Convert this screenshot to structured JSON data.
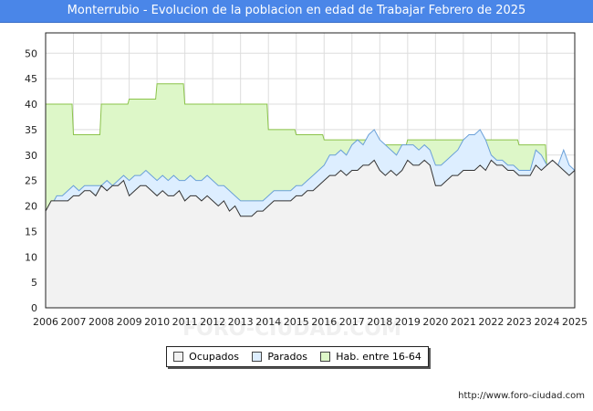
{
  "title": "Monterrubio - Evolucion de la poblacion en edad de Trabajar Febrero de 2025",
  "footer": "http://www.foro-ciudad.com",
  "watermark": "FORO-CIUDAD.COM",
  "colors": {
    "title_bg": "#4a86e8",
    "hab_fill": "#ddf7c8",
    "hab_line": "#8bc34a",
    "parados_fill": "#ddeeff",
    "parados_line": "#6aa0d8",
    "ocupados_fill": "#f2f2f2",
    "ocupados_line": "#333333",
    "grid": "#dddddd"
  },
  "chart_data": {
    "type": "area",
    "title": "Monterrubio - Evolucion de la poblacion en edad de Trabajar Febrero de 2025",
    "xlim": [
      2006,
      2025
    ],
    "ylim": [
      0,
      54
    ],
    "x_ticks": [
      "2006",
      "2007",
      "2008",
      "2009",
      "2010",
      "2011",
      "2012",
      "2013",
      "2014",
      "2015",
      "2016",
      "2017",
      "2018",
      "2019",
      "2020",
      "2021",
      "2022",
      "2023",
      "2024",
      "2025"
    ],
    "y_ticks": [
      0,
      5,
      10,
      15,
      20,
      25,
      30,
      35,
      40,
      45,
      50
    ],
    "grid": true,
    "legend_position": "bottom",
    "series": [
      {
        "name": "Hab. entre 16-64",
        "color": "#ddf7c8",
        "points": [
          [
            2006.0,
            40
          ],
          [
            2006.95,
            40
          ],
          [
            2007.0,
            34
          ],
          [
            2007.95,
            34
          ],
          [
            2008.0,
            40
          ],
          [
            2008.95,
            40
          ],
          [
            2009.0,
            41
          ],
          [
            2009.95,
            41
          ],
          [
            2010.0,
            44
          ],
          [
            2010.95,
            44
          ],
          [
            2011.0,
            40
          ],
          [
            2013.95,
            40
          ],
          [
            2014.0,
            35
          ],
          [
            2014.95,
            35
          ],
          [
            2015.0,
            34
          ],
          [
            2015.95,
            34
          ],
          [
            2016.0,
            33
          ],
          [
            2016.95,
            33
          ],
          [
            2017.0,
            33
          ],
          [
            2017.95,
            33
          ],
          [
            2018.0,
            32
          ],
          [
            2018.95,
            32
          ],
          [
            2019.0,
            33
          ],
          [
            2021.95,
            33
          ],
          [
            2022.0,
            33
          ],
          [
            2022.95,
            33
          ],
          [
            2023.0,
            32
          ],
          [
            2023.95,
            32
          ],
          [
            2024.0,
            27
          ],
          [
            2024.95,
            27
          ],
          [
            2025.0,
            27
          ]
        ]
      },
      {
        "name": "Parados",
        "color": "#ddeeff",
        "points": [
          [
            2006.0,
            19
          ],
          [
            2006.2,
            20
          ],
          [
            2006.4,
            22
          ],
          [
            2006.6,
            22
          ],
          [
            2006.8,
            23
          ],
          [
            2007.0,
            24
          ],
          [
            2007.2,
            23
          ],
          [
            2007.4,
            24
          ],
          [
            2007.6,
            24
          ],
          [
            2007.8,
            24
          ],
          [
            2008.0,
            24
          ],
          [
            2008.2,
            25
          ],
          [
            2008.4,
            24
          ],
          [
            2008.6,
            25
          ],
          [
            2008.8,
            26
          ],
          [
            2009.0,
            25
          ],
          [
            2009.2,
            26
          ],
          [
            2009.4,
            26
          ],
          [
            2009.6,
            27
          ],
          [
            2009.8,
            26
          ],
          [
            2010.0,
            25
          ],
          [
            2010.2,
            26
          ],
          [
            2010.4,
            25
          ],
          [
            2010.6,
            26
          ],
          [
            2010.8,
            25
          ],
          [
            2011.0,
            25
          ],
          [
            2011.2,
            26
          ],
          [
            2011.4,
            25
          ],
          [
            2011.6,
            25
          ],
          [
            2011.8,
            26
          ],
          [
            2012.0,
            25
          ],
          [
            2012.2,
            24
          ],
          [
            2012.4,
            24
          ],
          [
            2012.6,
            23
          ],
          [
            2012.8,
            22
          ],
          [
            2013.0,
            21
          ],
          [
            2013.2,
            21
          ],
          [
            2013.4,
            21
          ],
          [
            2013.6,
            21
          ],
          [
            2013.8,
            21
          ],
          [
            2014.0,
            22
          ],
          [
            2014.2,
            23
          ],
          [
            2014.4,
            23
          ],
          [
            2014.6,
            23
          ],
          [
            2014.8,
            23
          ],
          [
            2015.0,
            24
          ],
          [
            2015.2,
            24
          ],
          [
            2015.4,
            25
          ],
          [
            2015.6,
            26
          ],
          [
            2015.8,
            27
          ],
          [
            2016.0,
            28
          ],
          [
            2016.2,
            30
          ],
          [
            2016.4,
            30
          ],
          [
            2016.6,
            31
          ],
          [
            2016.8,
            30
          ],
          [
            2017.0,
            32
          ],
          [
            2017.2,
            33
          ],
          [
            2017.4,
            32
          ],
          [
            2017.6,
            34
          ],
          [
            2017.8,
            35
          ],
          [
            2018.0,
            33
          ],
          [
            2018.2,
            32
          ],
          [
            2018.4,
            31
          ],
          [
            2018.6,
            30
          ],
          [
            2018.8,
            32
          ],
          [
            2019.0,
            32
          ],
          [
            2019.2,
            32
          ],
          [
            2019.4,
            31
          ],
          [
            2019.6,
            32
          ],
          [
            2019.8,
            31
          ],
          [
            2020.0,
            28
          ],
          [
            2020.2,
            28
          ],
          [
            2020.4,
            29
          ],
          [
            2020.6,
            30
          ],
          [
            2020.8,
            31
          ],
          [
            2021.0,
            33
          ],
          [
            2021.2,
            34
          ],
          [
            2021.4,
            34
          ],
          [
            2021.6,
            35
          ],
          [
            2021.8,
            33
          ],
          [
            2022.0,
            30
          ],
          [
            2022.2,
            29
          ],
          [
            2022.4,
            29
          ],
          [
            2022.6,
            28
          ],
          [
            2022.8,
            28
          ],
          [
            2023.0,
            27
          ],
          [
            2023.2,
            27
          ],
          [
            2023.4,
            27
          ],
          [
            2023.6,
            31
          ],
          [
            2023.8,
            30
          ],
          [
            2024.0,
            28
          ],
          [
            2024.2,
            29
          ],
          [
            2024.4,
            28
          ],
          [
            2024.6,
            31
          ],
          [
            2024.8,
            28
          ],
          [
            2025.0,
            27
          ]
        ]
      },
      {
        "name": "Ocupados",
        "color": "#f2f2f2",
        "points": [
          [
            2006.0,
            19
          ],
          [
            2006.2,
            21
          ],
          [
            2006.4,
            21
          ],
          [
            2006.6,
            21
          ],
          [
            2006.8,
            21
          ],
          [
            2007.0,
            22
          ],
          [
            2007.2,
            22
          ],
          [
            2007.4,
            23
          ],
          [
            2007.6,
            23
          ],
          [
            2007.8,
            22
          ],
          [
            2008.0,
            24
          ],
          [
            2008.2,
            23
          ],
          [
            2008.4,
            24
          ],
          [
            2008.6,
            24
          ],
          [
            2008.8,
            25
          ],
          [
            2009.0,
            22
          ],
          [
            2009.2,
            23
          ],
          [
            2009.4,
            24
          ],
          [
            2009.6,
            24
          ],
          [
            2009.8,
            23
          ],
          [
            2010.0,
            22
          ],
          [
            2010.2,
            23
          ],
          [
            2010.4,
            22
          ],
          [
            2010.6,
            22
          ],
          [
            2010.8,
            23
          ],
          [
            2011.0,
            21
          ],
          [
            2011.2,
            22
          ],
          [
            2011.4,
            22
          ],
          [
            2011.6,
            21
          ],
          [
            2011.8,
            22
          ],
          [
            2012.0,
            21
          ],
          [
            2012.2,
            20
          ],
          [
            2012.4,
            21
          ],
          [
            2012.6,
            19
          ],
          [
            2012.8,
            20
          ],
          [
            2013.0,
            18
          ],
          [
            2013.2,
            18
          ],
          [
            2013.4,
            18
          ],
          [
            2013.6,
            19
          ],
          [
            2013.8,
            19
          ],
          [
            2014.0,
            20
          ],
          [
            2014.2,
            21
          ],
          [
            2014.4,
            21
          ],
          [
            2014.6,
            21
          ],
          [
            2014.8,
            21
          ],
          [
            2015.0,
            22
          ],
          [
            2015.2,
            22
          ],
          [
            2015.4,
            23
          ],
          [
            2015.6,
            23
          ],
          [
            2015.8,
            24
          ],
          [
            2016.0,
            25
          ],
          [
            2016.2,
            26
          ],
          [
            2016.4,
            26
          ],
          [
            2016.6,
            27
          ],
          [
            2016.8,
            26
          ],
          [
            2017.0,
            27
          ],
          [
            2017.2,
            27
          ],
          [
            2017.4,
            28
          ],
          [
            2017.6,
            28
          ],
          [
            2017.8,
            29
          ],
          [
            2018.0,
            27
          ],
          [
            2018.2,
            26
          ],
          [
            2018.4,
            27
          ],
          [
            2018.6,
            26
          ],
          [
            2018.8,
            27
          ],
          [
            2019.0,
            29
          ],
          [
            2019.2,
            28
          ],
          [
            2019.4,
            28
          ],
          [
            2019.6,
            29
          ],
          [
            2019.8,
            28
          ],
          [
            2020.0,
            24
          ],
          [
            2020.2,
            24
          ],
          [
            2020.4,
            25
          ],
          [
            2020.6,
            26
          ],
          [
            2020.8,
            26
          ],
          [
            2021.0,
            27
          ],
          [
            2021.2,
            27
          ],
          [
            2021.4,
            27
          ],
          [
            2021.6,
            28
          ],
          [
            2021.8,
            27
          ],
          [
            2022.0,
            29
          ],
          [
            2022.2,
            28
          ],
          [
            2022.4,
            28
          ],
          [
            2022.6,
            27
          ],
          [
            2022.8,
            27
          ],
          [
            2023.0,
            26
          ],
          [
            2023.2,
            26
          ],
          [
            2023.4,
            26
          ],
          [
            2023.6,
            28
          ],
          [
            2023.8,
            27
          ],
          [
            2024.0,
            28
          ],
          [
            2024.2,
            29
          ],
          [
            2024.4,
            28
          ],
          [
            2024.6,
            27
          ],
          [
            2024.8,
            26
          ],
          [
            2025.0,
            27
          ]
        ]
      }
    ]
  },
  "legend": [
    {
      "label": "Ocupados",
      "color": "#f2f2f2"
    },
    {
      "label": "Parados",
      "color": "#ddeeff"
    },
    {
      "label": "Hab. entre 16-64",
      "color": "#ddf7c8"
    }
  ]
}
